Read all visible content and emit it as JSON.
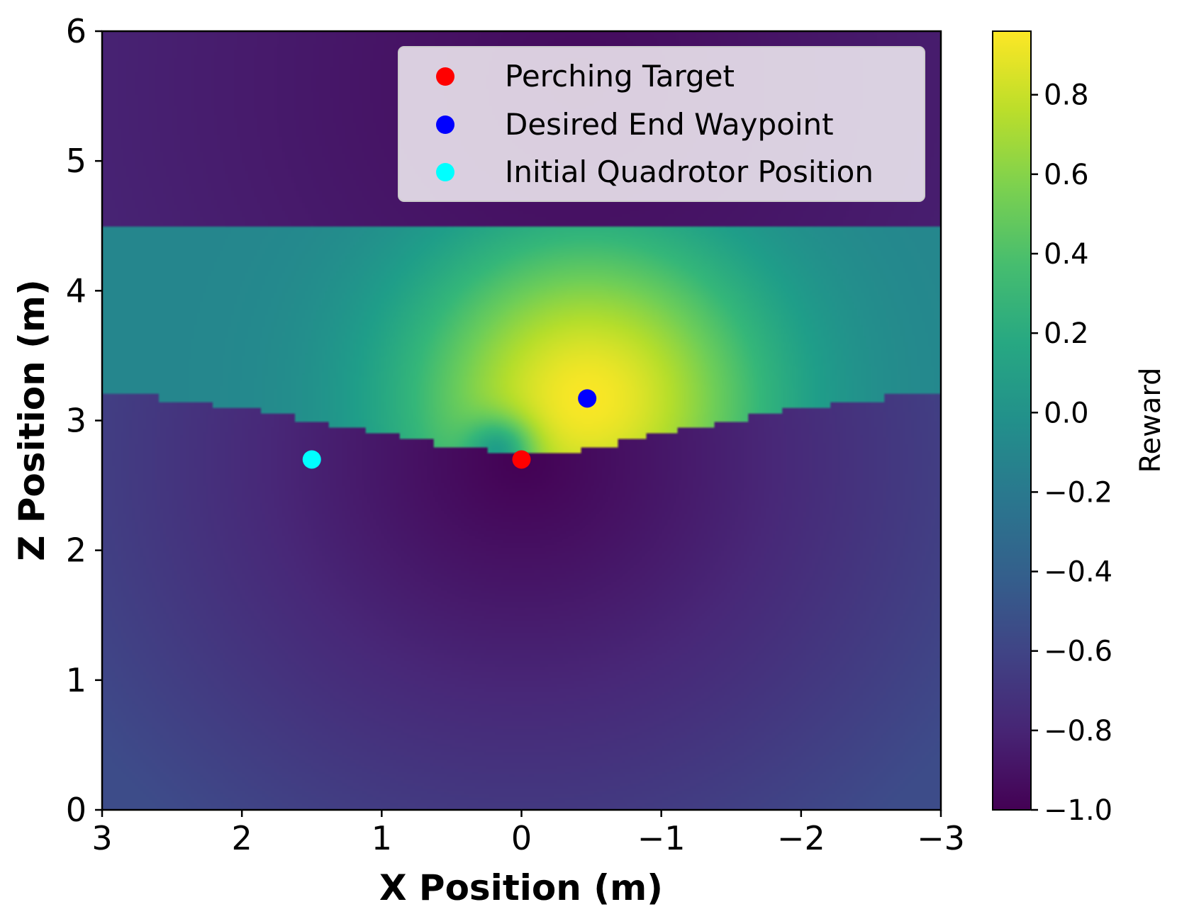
{
  "chart_data": {
    "type": "heatmap",
    "xlabel": "X Position (m)",
    "ylabel": "Z Position (m)",
    "xlim": [
      3,
      -3
    ],
    "ylim": [
      0,
      6
    ],
    "x_ticks": [
      3,
      2,
      1,
      0,
      -1,
      -2,
      -3
    ],
    "x_tick_labels": [
      "3",
      "2",
      "1",
      "0",
      "−1",
      "−2",
      "−3"
    ],
    "y_ticks": [
      0,
      1,
      2,
      3,
      4,
      5,
      6
    ],
    "y_tick_labels": [
      "0",
      "1",
      "2",
      "3",
      "4",
      "5",
      "6"
    ],
    "colorbar": {
      "label": "Reward",
      "range": [
        -1.0,
        0.96
      ],
      "colormap": "viridis",
      "ticks": [
        -1.0,
        -0.8,
        -0.6,
        -0.4,
        -0.2,
        0.0,
        0.2,
        0.4,
        0.6,
        0.8
      ],
      "tick_labels": [
        "−1.0",
        "−0.8",
        "−0.6",
        "−0.4",
        "−0.2",
        "0.0",
        "0.2",
        "0.4",
        "0.6",
        "0.8"
      ]
    },
    "field": {
      "upper_boundary_z": 4.5,
      "lower_boundary_profile": [
        {
          "x": 2.8,
          "z": 3.2
        },
        {
          "x": 2.0,
          "z": 3.1
        },
        {
          "x": 1.5,
          "z": 3.0
        },
        {
          "x": 1.0,
          "z": 2.9
        },
        {
          "x": 0.5,
          "z": 2.8
        },
        {
          "x": 0.0,
          "z": 2.75
        },
        {
          "x": -0.5,
          "z": 2.78
        },
        {
          "x": -1.0,
          "z": 2.9
        },
        {
          "x": -1.5,
          "z": 3.0
        },
        {
          "x": -2.0,
          "z": 3.1
        },
        {
          "x": -2.8,
          "z": 3.2
        }
      ],
      "peak": {
        "x": -0.47,
        "z": 3.17,
        "value": 0.95
      },
      "minimum": {
        "x": 0.0,
        "z": 2.7,
        "value": -1.0
      }
    },
    "points": [
      {
        "name": "Perching Target",
        "x": 0.0,
        "z": 2.7,
        "color": "#ff0000"
      },
      {
        "name": "Desired End Waypoint",
        "x": -0.47,
        "z": 3.17,
        "color": "#0000ff"
      },
      {
        "name": "Initial Quadrotor Position",
        "x": 1.5,
        "z": 2.7,
        "color": "#00ffff"
      }
    ],
    "legend": {
      "position": "upper-right",
      "entries": [
        "Perching Target",
        "Desired End Waypoint",
        "Initial Quadrotor Position"
      ]
    }
  }
}
